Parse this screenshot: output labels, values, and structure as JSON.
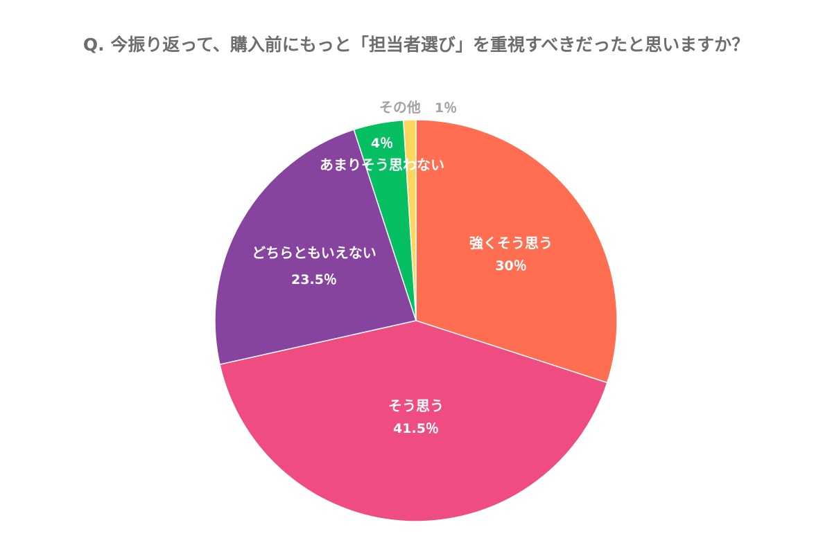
{
  "chart_data": {
    "type": "pie",
    "title": "Q. 今振り返って、購入前にもっと「担当者選び」を重視すべきだったと思いますか？",
    "start_angle_deg": 0,
    "direction": "clockwise",
    "slices": [
      {
        "label": "強くそう思う",
        "value": 30,
        "value_text": "30％",
        "color": "#ff6e50"
      },
      {
        "label": "そう思う",
        "value": 41.5,
        "value_text": "41.5％",
        "color": "#ef4c82"
      },
      {
        "label": "どちらともいえない",
        "value": 23.5,
        "value_text": "23.5％",
        "color": "#86449e"
      },
      {
        "label": "あまりそう思わない",
        "value": 4,
        "value_text": "4％",
        "color": "#07bf63"
      },
      {
        "label": "その他",
        "value": 1,
        "value_text": "1％",
        "color": "#fcd75b"
      }
    ]
  }
}
